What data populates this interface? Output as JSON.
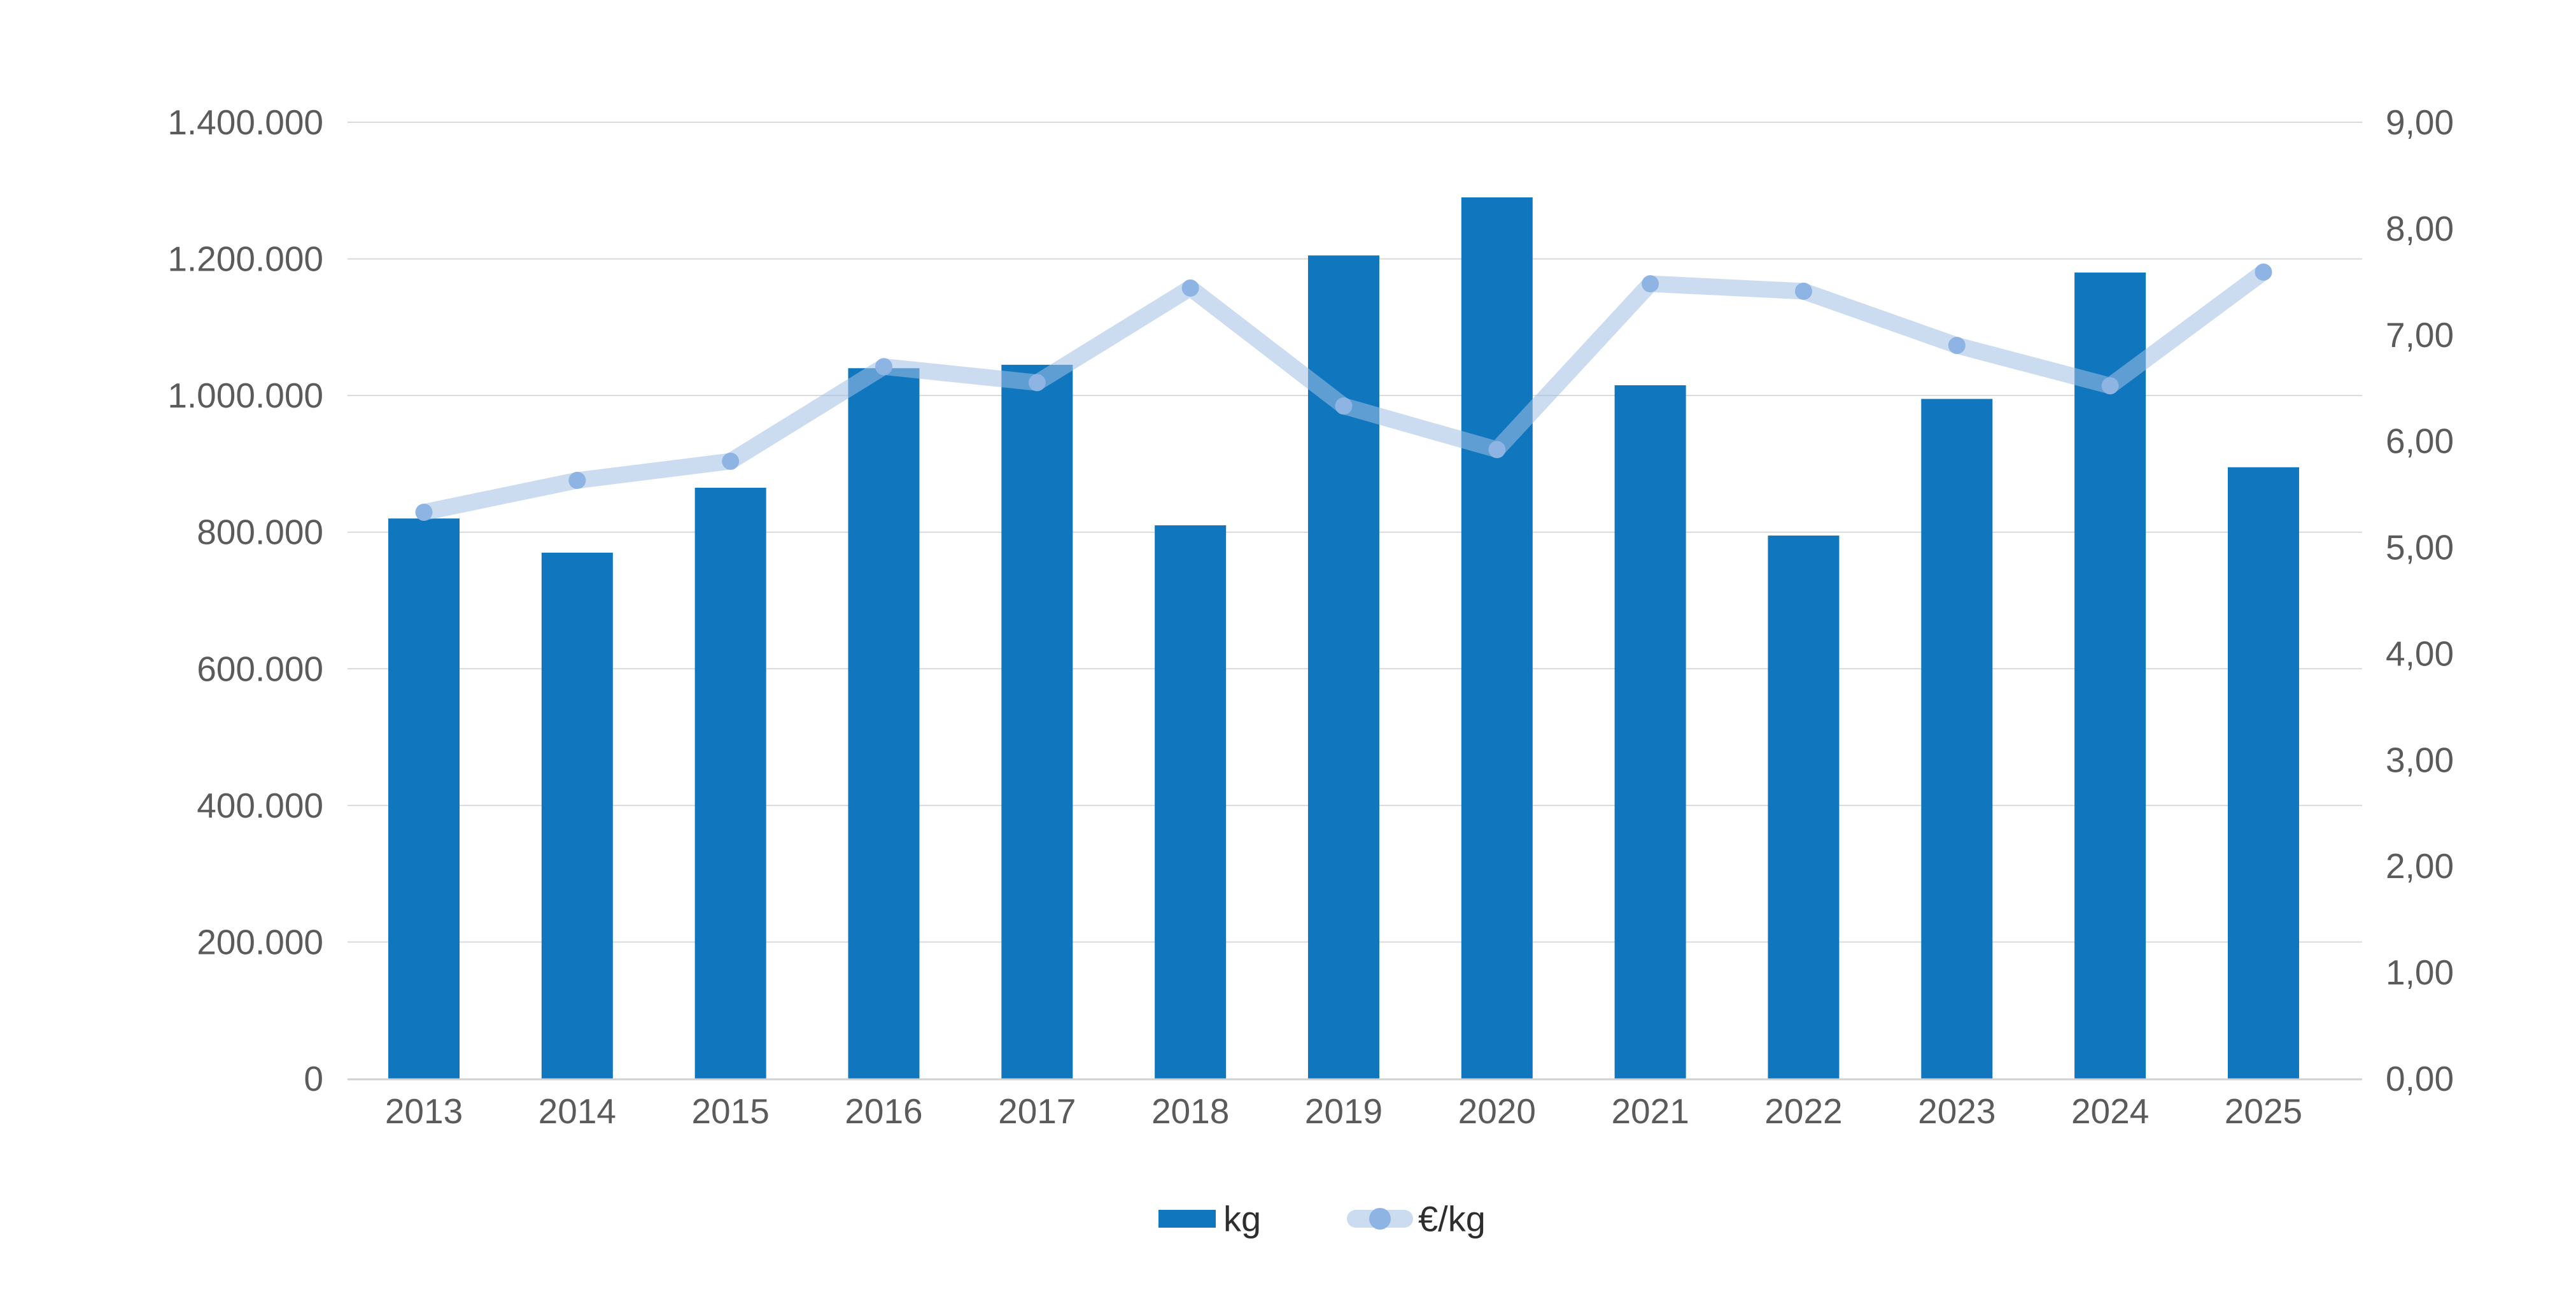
{
  "page": {
    "background": "#ffffff"
  },
  "chart_data": {
    "type": "combo",
    "title": "",
    "categories": [
      "2013",
      "2014",
      "2015",
      "2016",
      "2017",
      "2018",
      "2019",
      "2020",
      "2021",
      "2022",
      "2023",
      "2024",
      "2025"
    ],
    "series": [
      {
        "name": "kg",
        "type": "bar",
        "axis": "left",
        "color": "#1076bd",
        "values": [
          820000,
          770000,
          865000,
          1040000,
          1045000,
          810000,
          1205000,
          1290000,
          1015000,
          795000,
          995000,
          1180000,
          895000
        ]
      },
      {
        "name": "€/kg",
        "type": "line",
        "axis": "right",
        "line_color": "rgba(160,192,228,0.55)",
        "dot_color": "#8db4e2",
        "values": [
          5.33,
          5.63,
          5.81,
          6.7,
          6.55,
          7.44,
          6.33,
          5.92,
          7.48,
          7.41,
          6.9,
          6.52,
          7.59
        ]
      }
    ],
    "y_left": {
      "min": 0,
      "max": 1400000,
      "step": 200000,
      "tick_labels": [
        "0",
        "200.000",
        "400.000",
        "600.000",
        "800.000",
        "1.000.000",
        "1.200.000",
        "1.400.000"
      ]
    },
    "y_right": {
      "min": 0,
      "max": 9,
      "step": 1,
      "tick_labels": [
        "0,00",
        "1,00",
        "2,00",
        "3,00",
        "4,00",
        "5,00",
        "6,00",
        "7,00",
        "8,00",
        "9,00"
      ]
    },
    "grid": true,
    "legend_position": "bottom",
    "colors": {
      "gridline": "#d9d9d9",
      "baseline": "#d1d1d1",
      "axis_text": "#5b5b5b",
      "legend_text": "#2e2e2e"
    }
  }
}
